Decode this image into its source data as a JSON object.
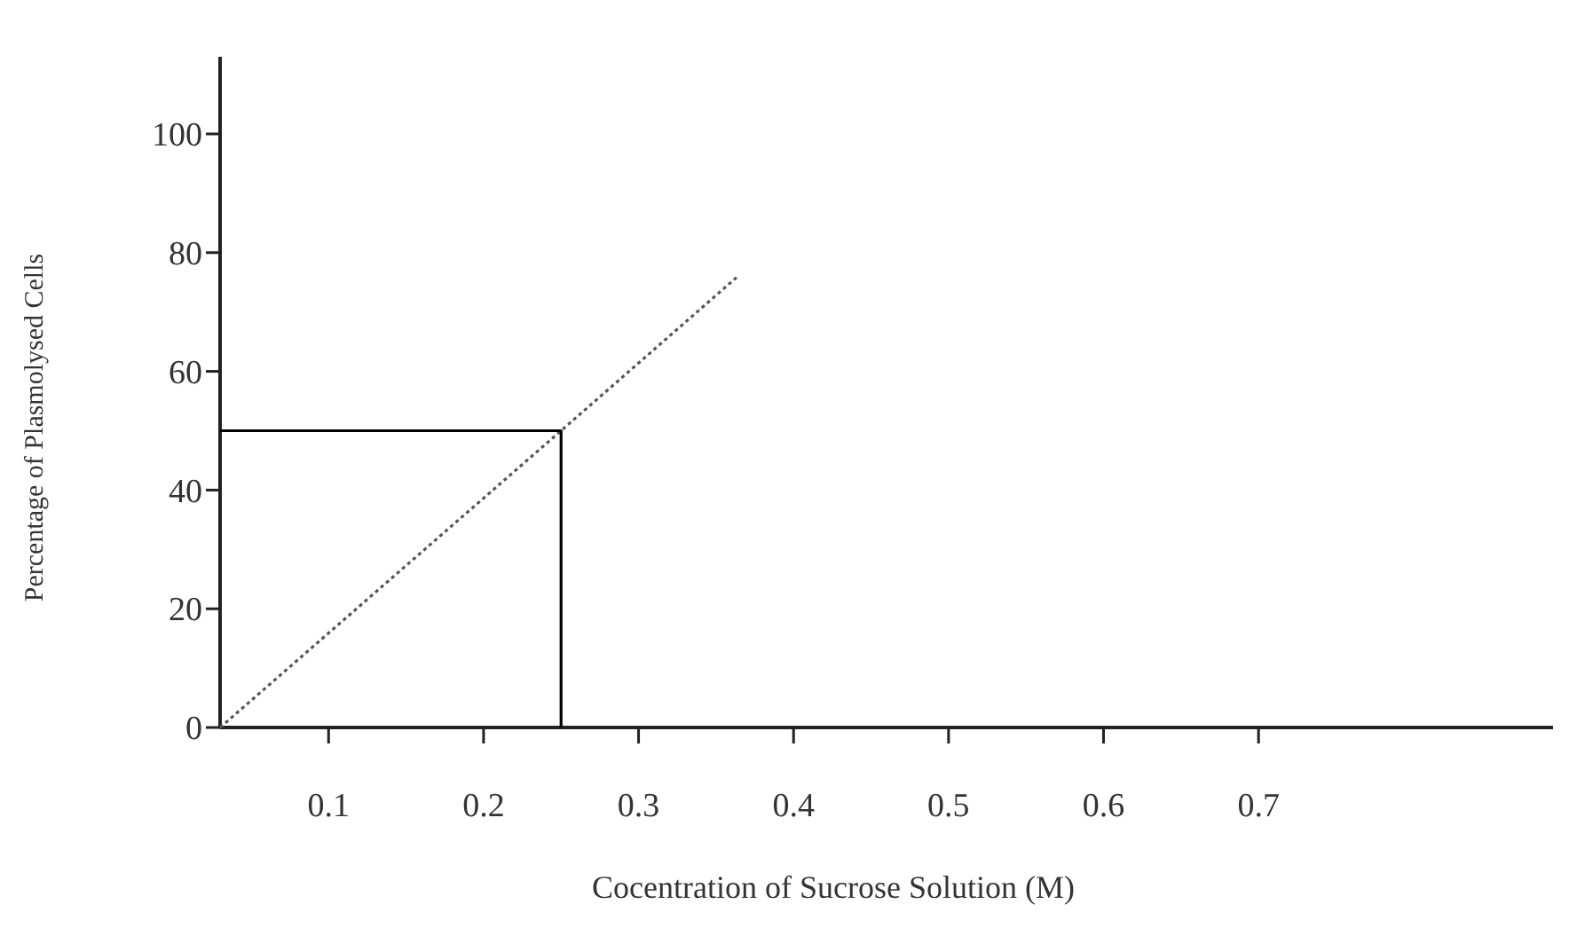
{
  "chart_data": {
    "type": "line",
    "xlabel": "Cocentration of Sucrose Solution (M)",
    "ylabel": "Percentage of Plasmolysed Cells",
    "xlim": [
      0.03,
      0.89
    ],
    "xticks": [
      0.1,
      0.2,
      0.3,
      0.4,
      0.5,
      0.6,
      0.7
    ],
    "ylim": [
      0,
      113
    ],
    "yticks": [
      0,
      20,
      40,
      60,
      80,
      100
    ],
    "grid": false,
    "series": [
      {
        "color": "#555555",
        "x": [
          0.03,
          0.25,
          0.364
        ],
        "values": [
          0,
          50,
          76
        ],
        "line_style": "dotted"
      },
      {
        "color": "#000000",
        "x": [
          0.03,
          0.25,
          0.25
        ],
        "values": [
          50,
          50,
          0
        ],
        "line_style": "solid"
      }
    ]
  }
}
